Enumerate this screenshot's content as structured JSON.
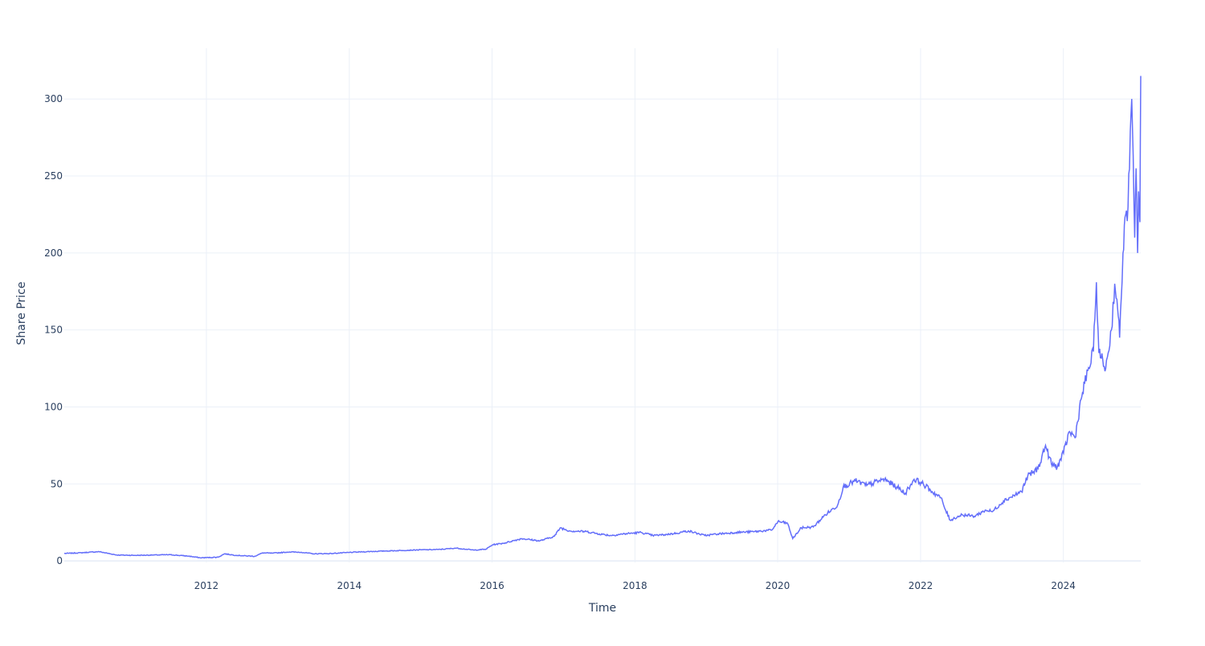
{
  "colors": {
    "line": "#636efa",
    "grid": "#ebf0f8",
    "zero_line": "#ebf0f8",
    "text": "#2a3f5f",
    "background": "#ffffff"
  },
  "chart_data": {
    "type": "line",
    "xlabel": "Time",
    "ylabel": "Share Price",
    "grid": true,
    "x_range": [
      "2010-01-04",
      "2025-01-31"
    ],
    "ylim": [
      -1,
      333
    ],
    "x_ticks": [
      {
        "date": "2012-01-01",
        "label": "2012"
      },
      {
        "date": "2014-01-01",
        "label": "2014"
      },
      {
        "date": "2016-01-01",
        "label": "2016"
      },
      {
        "date": "2018-01-01",
        "label": "2018"
      },
      {
        "date": "2020-01-01",
        "label": "2020"
      },
      {
        "date": "2022-01-01",
        "label": "2022"
      },
      {
        "date": "2024-01-01",
        "label": "2024"
      }
    ],
    "y_ticks": [
      0,
      50,
      100,
      150,
      200,
      250,
      300
    ],
    "series": [
      {
        "x": [
          "2010-01-04",
          "2010-04-01",
          "2010-07-01",
          "2010-10-01",
          "2011-01-03",
          "2011-04-01",
          "2011-07-01",
          "2011-09-01",
          "2011-10-03",
          "2011-12-01",
          "2012-03-01",
          "2012-04-02",
          "2012-06-01",
          "2012-09-04",
          "2012-10-15",
          "2012-12-03",
          "2013-03-01",
          "2013-05-01",
          "2013-07-01",
          "2013-10-01",
          "2014-01-02",
          "2014-04-01",
          "2014-07-01",
          "2014-10-01",
          "2015-01-02",
          "2015-04-01",
          "2015-07-01",
          "2015-10-01",
          "2015-12-01",
          "2016-01-04",
          "2016-03-01",
          "2016-06-01",
          "2016-09-01",
          "2016-11-15",
          "2016-12-15",
          "2017-02-01",
          "2017-05-01",
          "2017-07-03",
          "2017-09-01",
          "2017-11-01",
          "2018-02-01",
          "2018-04-02",
          "2018-06-01",
          "2018-08-01",
          "2018-10-01",
          "2018-12-24",
          "2019-03-01",
          "2019-06-03",
          "2019-09-03",
          "2019-12-02",
          "2020-01-02",
          "2020-02-20",
          "2020-03-18",
          "2020-05-01",
          "2020-07-01",
          "2020-09-01",
          "2020-11-02",
          "2020-12-01",
          "2021-02-01",
          "2021-04-01",
          "2021-06-01",
          "2021-07-01",
          "2021-09-01",
          "2021-10-15",
          "2021-11-29",
          "2022-01-03",
          "2022-03-01",
          "2022-04-15",
          "2022-05-02",
          "2022-06-01",
          "2022-08-01",
          "2022-10-03",
          "2022-12-01",
          "2023-01-03",
          "2023-03-01",
          "2023-05-01",
          "2023-06-01",
          "2023-07-03",
          "2023-08-25",
          "2023-10-02",
          "2023-11-01",
          "2023-12-01",
          "2024-01-02",
          "2024-02-01",
          "2024-03-01",
          "2024-04-01",
          "2024-04-19",
          "2024-06-03",
          "2024-06-18",
          "2024-07-01",
          "2024-08-05",
          "2024-09-03",
          "2024-09-20",
          "2024-10-01",
          "2024-10-15",
          "2024-11-01",
          "2024-11-15",
          "2024-11-27",
          "2024-12-16",
          "2024-12-31",
          "2025-01-07",
          "2025-01-15",
          "2025-01-20",
          "2025-01-27",
          "2025-01-31"
        ],
        "y": [
          4.8,
          5.3,
          6.0,
          3.8,
          3.6,
          3.8,
          4.0,
          3.4,
          3.1,
          2.0,
          2.4,
          4.6,
          3.6,
          3.0,
          5.2,
          5.0,
          5.8,
          5.6,
          4.6,
          4.8,
          5.5,
          6.0,
          6.4,
          6.8,
          7.2,
          7.4,
          8.3,
          7.0,
          7.6,
          10.5,
          11.5,
          14.5,
          13.0,
          16.0,
          21.5,
          19.5,
          19.0,
          17.5,
          16.5,
          17.5,
          18.5,
          16.5,
          17.0,
          18.0,
          19.5,
          16.5,
          17.5,
          18.5,
          19.0,
          20.0,
          25.5,
          24.5,
          14.5,
          21.5,
          22.0,
          30.0,
          36.0,
          48.0,
          52.0,
          49.0,
          52.0,
          53.0,
          48.0,
          44.0,
          53.0,
          51.0,
          45.0,
          41.0,
          35.0,
          26.5,
          30.0,
          29.0,
          33.0,
          32.0,
          39.0,
          43.0,
          45.0,
          55.0,
          60.0,
          75.0,
          63.0,
          61.0,
          70.0,
          84.0,
          80.0,
          105.0,
          115.0,
          136.0,
          181.0,
          135.0,
          125.0,
          150.0,
          180.0,
          170.0,
          145.0,
          200.0,
          225.0,
          230.0,
          300.0,
          210.0,
          255.0,
          200.0,
          240.0,
          220.0,
          315.0
        ]
      }
    ]
  }
}
